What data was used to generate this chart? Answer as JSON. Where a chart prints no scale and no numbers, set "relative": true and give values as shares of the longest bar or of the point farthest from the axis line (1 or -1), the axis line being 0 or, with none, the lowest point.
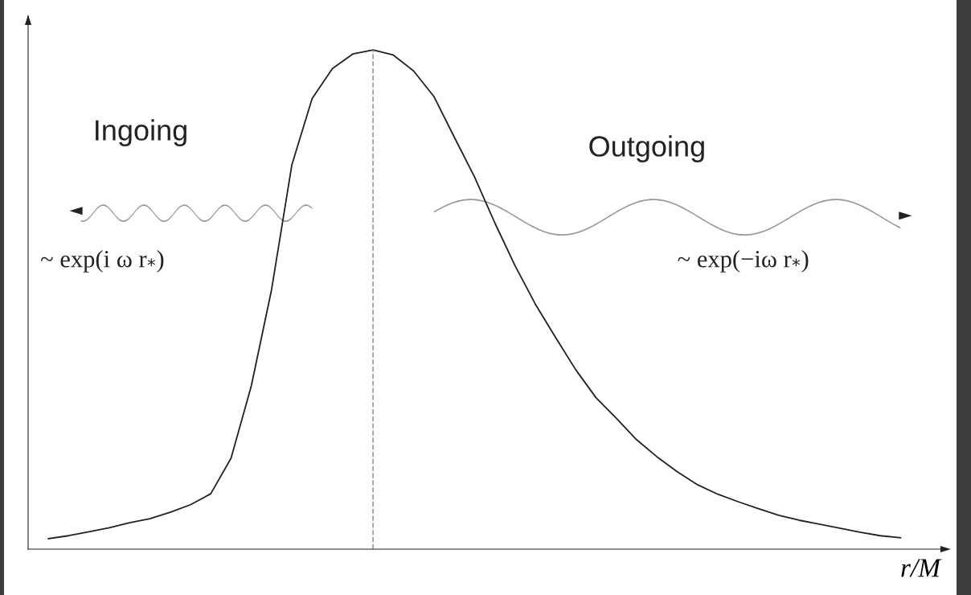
{
  "chart_data": {
    "type": "line",
    "relative": true,
    "xlabel": "r/M",
    "categories": [
      null,
      null,
      null,
      null,
      null,
      null,
      null,
      null,
      null,
      null,
      null,
      null,
      null,
      null,
      null,
      null,
      null,
      null,
      null,
      null,
      null,
      null,
      null,
      null,
      null,
      null,
      null,
      null,
      null,
      null,
      null,
      null,
      null,
      null,
      null,
      null,
      null,
      null,
      null,
      null,
      null,
      null,
      null
    ],
    "series": [
      {
        "color": "#222222",
        "values": [
          0.021,
          0.027,
          0.035,
          0.043,
          0.053,
          0.061,
          0.074,
          0.089,
          0.111,
          0.182,
          0.327,
          0.52,
          0.77,
          0.903,
          0.963,
          0.992,
          1.0,
          0.99,
          0.958,
          0.907,
          0.826,
          0.746,
          0.654,
          0.568,
          0.491,
          0.424,
          0.359,
          0.303,
          0.262,
          0.219,
          0.185,
          0.155,
          0.129,
          0.11,
          0.095,
          0.081,
          0.068,
          0.058,
          0.05,
          0.042,
          0.034,
          0.027,
          0.023
        ]
      }
    ],
    "annotations": [
      "Ingoing",
      "Outgoing",
      "~ exp(i ω r$_{*}$)",
      "~ exp(−iω r$_{*}$)"
    ],
    "tick_labels": false,
    "marker": "none",
    "line_style": "solid"
  }
}
